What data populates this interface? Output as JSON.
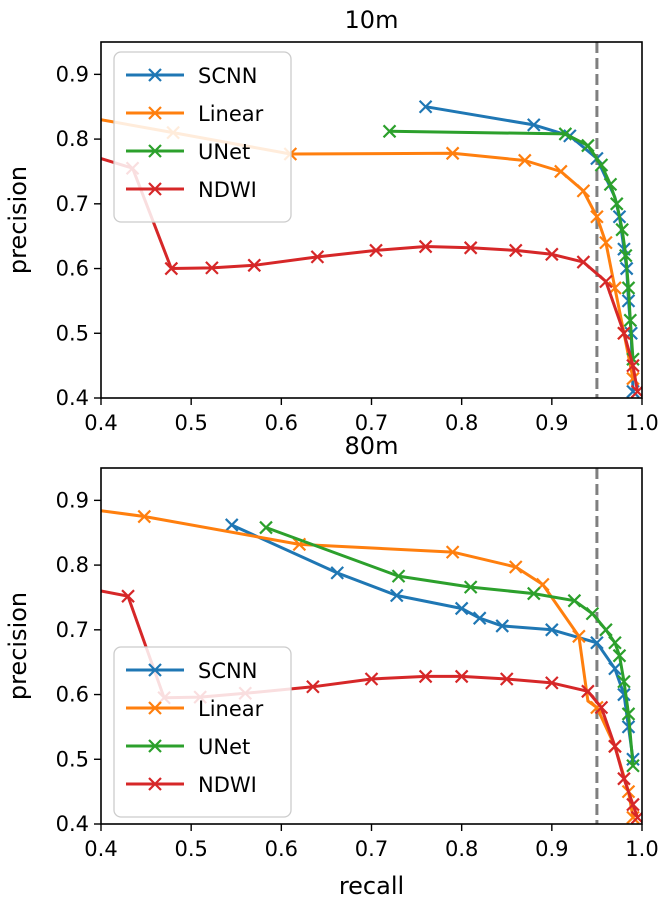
{
  "chart_data": [
    {
      "type": "line",
      "title": "10m",
      "xlabel": "",
      "ylabel": "precision",
      "xlim": [
        0.4,
        1.0
      ],
      "ylim": [
        0.4,
        0.95
      ],
      "xticks": [
        "0.4",
        "0.5",
        "0.6",
        "0.7",
        "0.8",
        "0.9",
        "1.0"
      ],
      "xtick_values": [
        0.4,
        0.5,
        0.6,
        0.7,
        0.8,
        0.9,
        1.0
      ],
      "yticks": [
        "0.4",
        "0.5",
        "0.6",
        "0.7",
        "0.8",
        "0.9"
      ],
      "ytick_values": [
        0.4,
        0.5,
        0.6,
        0.7,
        0.8,
        0.9
      ],
      "threshold_x": 0.95,
      "legend": "upper-left",
      "series": [
        {
          "name": "SCNN",
          "color": "#1f77b4",
          "x": [
            0.76,
            0.88,
            0.92,
            0.95,
            0.96,
            0.97,
            0.975,
            0.98,
            0.983,
            0.985,
            0.988,
            0.99
          ],
          "y": [
            0.85,
            0.822,
            0.805,
            0.77,
            0.74,
            0.71,
            0.68,
            0.63,
            0.6,
            0.55,
            0.5,
            0.41
          ],
          "markers": [
            0.76,
            0.88,
            0.92,
            0.95,
            0.975,
            0.98,
            0.983,
            0.985,
            0.988,
            0.99
          ]
        },
        {
          "name": "Linear",
          "color": "#ff7f0e",
          "x": [
            0.4,
            0.48,
            0.61,
            0.79,
            0.87,
            0.91,
            0.935,
            0.95,
            0.96,
            0.97,
            0.98,
            0.99
          ],
          "y": [
            0.83,
            0.81,
            0.777,
            0.778,
            0.767,
            0.75,
            0.72,
            0.68,
            0.64,
            0.57,
            0.5,
            0.43
          ],
          "markers": [
            0.48,
            0.61,
            0.79,
            0.87,
            0.91,
            0.935,
            0.95,
            0.96,
            0.97,
            0.98,
            0.99
          ]
        },
        {
          "name": "UNet",
          "color": "#2ca02c",
          "x": [
            0.72,
            0.915,
            0.94,
            0.955,
            0.965,
            0.972,
            0.978,
            0.982,
            0.985,
            0.987,
            0.99
          ],
          "y": [
            0.812,
            0.808,
            0.79,
            0.76,
            0.73,
            0.7,
            0.66,
            0.62,
            0.57,
            0.52,
            0.46
          ],
          "markers": [
            0.72,
            0.915,
            0.94,
            0.955,
            0.965,
            0.972,
            0.978,
            0.982,
            0.985,
            0.987,
            0.99
          ]
        },
        {
          "name": "NDWI",
          "color": "#d62728",
          "x": [
            0.4,
            0.435,
            0.478,
            0.523,
            0.57,
            0.64,
            0.705,
            0.76,
            0.81,
            0.86,
            0.9,
            0.935,
            0.96,
            0.98,
            0.99,
            0.995
          ],
          "y": [
            0.77,
            0.755,
            0.6,
            0.601,
            0.605,
            0.618,
            0.628,
            0.634,
            0.632,
            0.628,
            0.622,
            0.61,
            0.58,
            0.5,
            0.45,
            0.41
          ],
          "markers": [
            0.435,
            0.478,
            0.523,
            0.57,
            0.64,
            0.705,
            0.76,
            0.81,
            0.86,
            0.9,
            0.935,
            0.96,
            0.98,
            0.99,
            0.995
          ]
        }
      ]
    },
    {
      "type": "line",
      "title": "80m",
      "xlabel": "recall",
      "ylabel": "precision",
      "xlim": [
        0.4,
        1.0
      ],
      "ylim": [
        0.4,
        0.95
      ],
      "xticks": [
        "0.4",
        "0.5",
        "0.6",
        "0.7",
        "0.8",
        "0.9",
        "1.0"
      ],
      "xtick_values": [
        0.4,
        0.5,
        0.6,
        0.7,
        0.8,
        0.9,
        1.0
      ],
      "yticks": [
        "0.4",
        "0.5",
        "0.6",
        "0.7",
        "0.8",
        "0.9"
      ],
      "ytick_values": [
        0.4,
        0.5,
        0.6,
        0.7,
        0.8,
        0.9
      ],
      "threshold_x": 0.95,
      "legend": "lower-left",
      "series": [
        {
          "name": "SCNN",
          "color": "#1f77b4",
          "x": [
            0.545,
            0.662,
            0.728,
            0.8,
            0.82,
            0.845,
            0.9,
            0.95,
            0.97,
            0.98,
            0.985,
            0.99
          ],
          "y": [
            0.862,
            0.788,
            0.753,
            0.733,
            0.718,
            0.706,
            0.7,
            0.68,
            0.64,
            0.6,
            0.55,
            0.5
          ],
          "markers": [
            0.545,
            0.662,
            0.728,
            0.8,
            0.82,
            0.845,
            0.9,
            0.95,
            0.97,
            0.98,
            0.985,
            0.99
          ]
        },
        {
          "name": "Linear",
          "color": "#ff7f0e",
          "x": [
            0.4,
            0.448,
            0.62,
            0.79,
            0.86,
            0.89,
            0.93,
            0.94,
            0.95,
            0.97,
            0.985,
            0.99
          ],
          "y": [
            0.884,
            0.875,
            0.832,
            0.82,
            0.797,
            0.77,
            0.69,
            0.59,
            0.58,
            0.52,
            0.45,
            0.41
          ],
          "markers": [
            0.448,
            0.62,
            0.79,
            0.86,
            0.89,
            0.93,
            0.95,
            0.97,
            0.985,
            0.99
          ]
        },
        {
          "name": "UNet",
          "color": "#2ca02c",
          "x": [
            0.583,
            0.73,
            0.81,
            0.88,
            0.925,
            0.945,
            0.96,
            0.97,
            0.975,
            0.98,
            0.985,
            0.99
          ],
          "y": [
            0.858,
            0.783,
            0.766,
            0.756,
            0.745,
            0.725,
            0.7,
            0.68,
            0.66,
            0.62,
            0.57,
            0.49
          ],
          "markers": [
            0.583,
            0.73,
            0.81,
            0.88,
            0.925,
            0.945,
            0.96,
            0.97,
            0.975,
            0.98,
            0.985,
            0.99
          ]
        },
        {
          "name": "NDWI",
          "color": "#d62728",
          "x": [
            0.4,
            0.43,
            0.47,
            0.51,
            0.56,
            0.635,
            0.7,
            0.76,
            0.8,
            0.85,
            0.9,
            0.94,
            0.955,
            0.97,
            0.98,
            0.99,
            0.995
          ],
          "y": [
            0.76,
            0.752,
            0.595,
            0.596,
            0.602,
            0.612,
            0.624,
            0.628,
            0.628,
            0.624,
            0.618,
            0.605,
            0.58,
            0.52,
            0.47,
            0.43,
            0.41
          ],
          "markers": [
            0.43,
            0.47,
            0.51,
            0.56,
            0.635,
            0.7,
            0.76,
            0.8,
            0.85,
            0.9,
            0.94,
            0.955,
            0.97,
            0.98,
            0.99,
            0.995
          ]
        }
      ]
    }
  ]
}
